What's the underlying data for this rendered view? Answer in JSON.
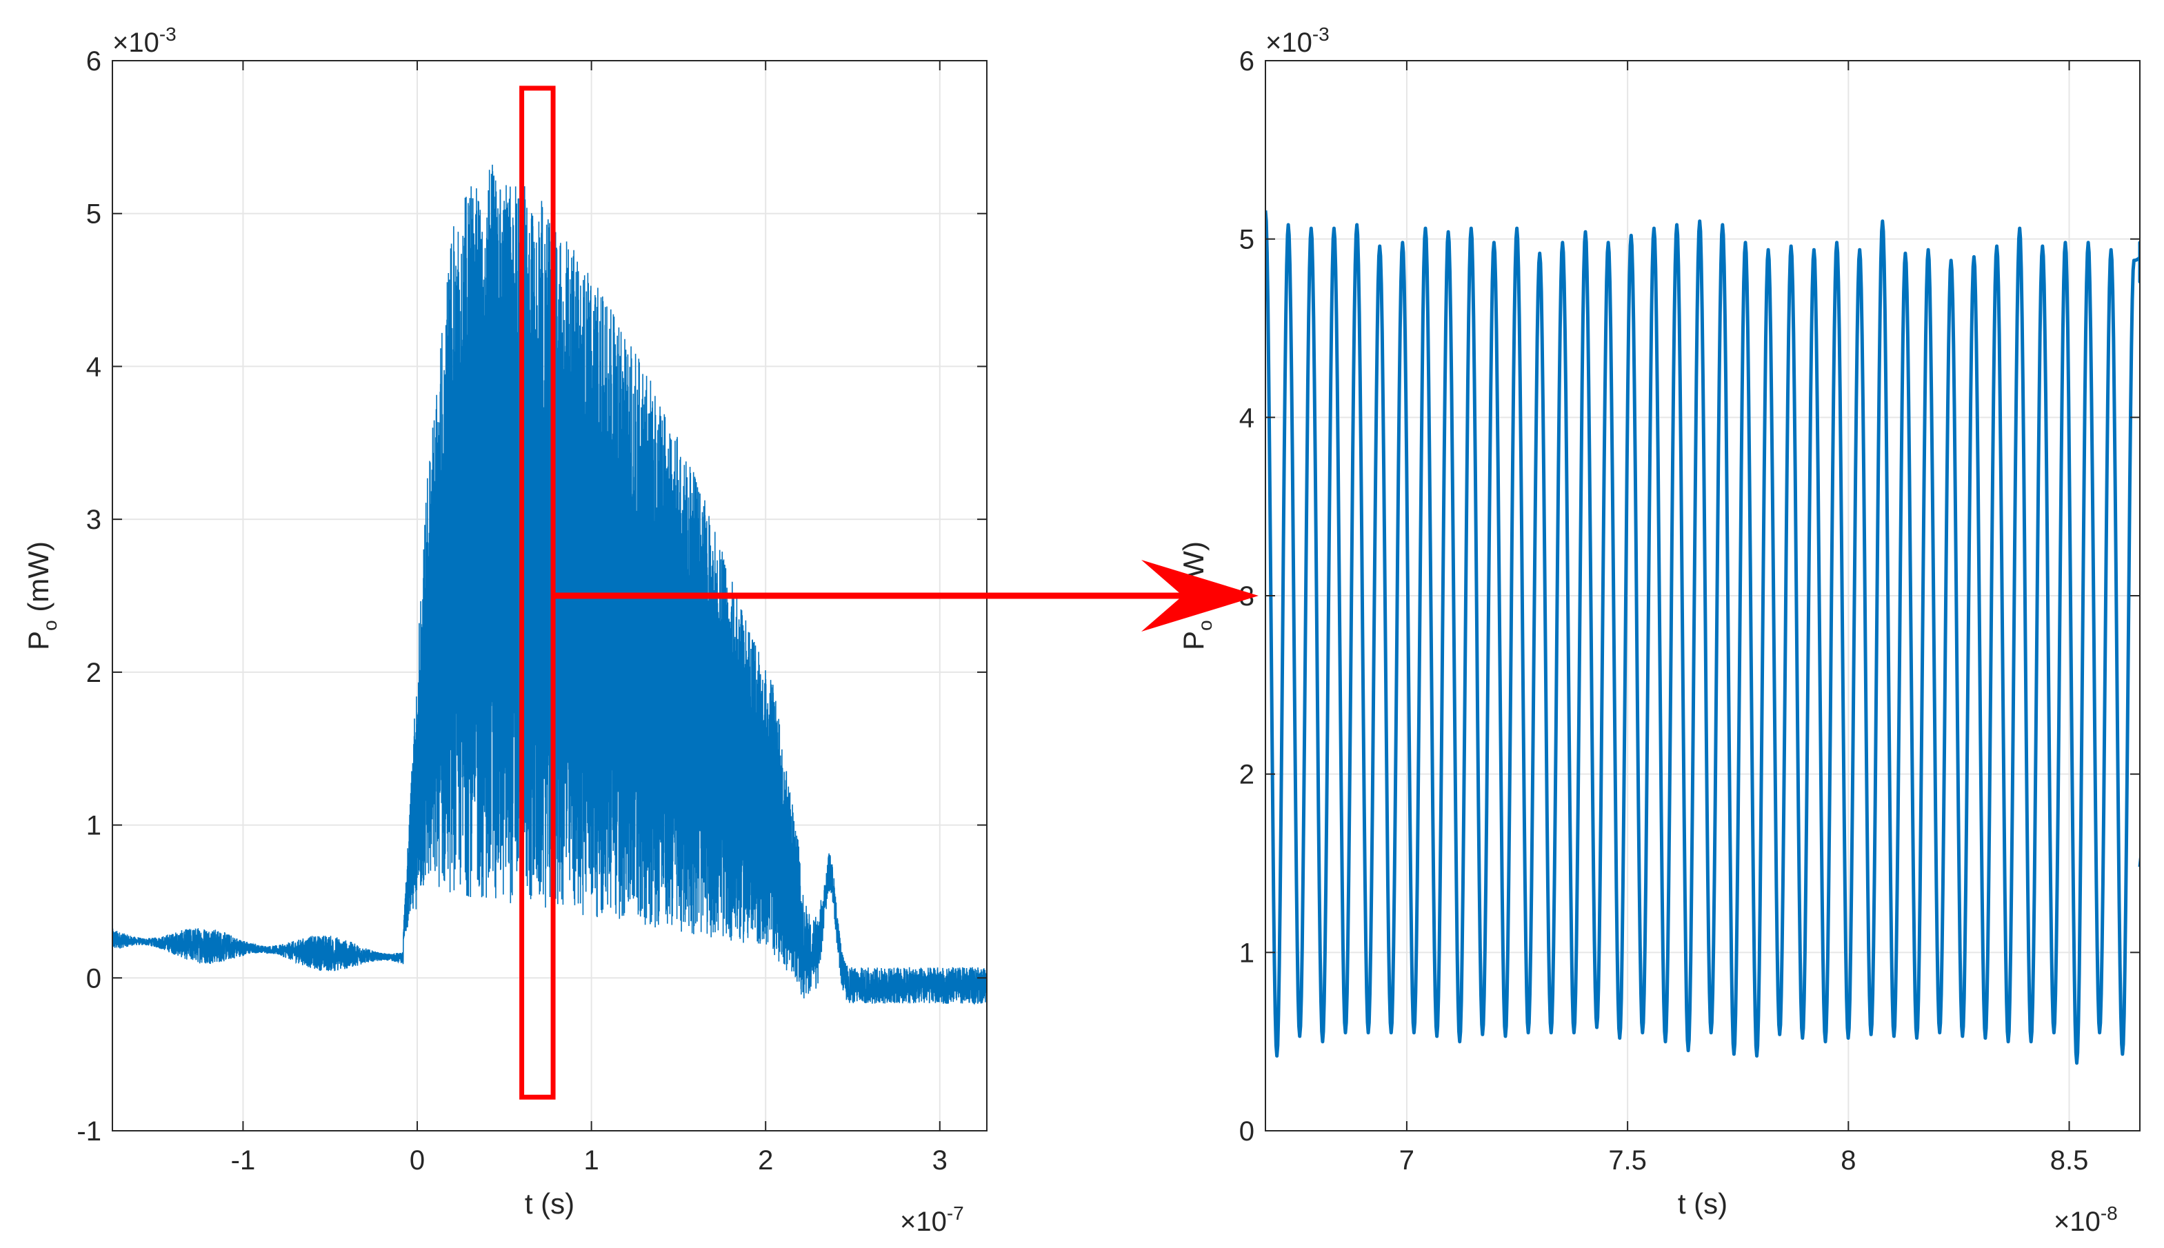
{
  "colors": {
    "series": "#0072bd",
    "grid": "#e6e6e6",
    "axis": "#262626",
    "annotation": "#ff0000"
  },
  "chart_data": [
    {
      "type": "line",
      "title": "",
      "xlabel": "t (s)",
      "ylabel_main": "P",
      "ylabel_sub": "o",
      "ylabel_unit": " (mW)",
      "xlim": [
        -1.75,
        3.27
      ],
      "ylim": [
        -1,
        6
      ],
      "xticks": [
        -1,
        0,
        1,
        2,
        3
      ],
      "yticks": [
        -1,
        0,
        1,
        2,
        3,
        4,
        5,
        6
      ],
      "xtick_labels": [
        "-1",
        "0",
        "1",
        "2",
        "3"
      ],
      "ytick_labels": [
        "-1",
        "0",
        "1",
        "2",
        "3",
        "4",
        "5",
        "6"
      ],
      "x_exponent_base": "×10",
      "x_exponent": "-7",
      "y_exponent_base": "×10",
      "y_exponent": "-3",
      "grid": true,
      "legend": "none",
      "series": [
        {
          "baseline_level": 0.25,
          "baseline_noise": 0.12,
          "rise_start": -0.08,
          "rise_peak": 0.35,
          "decay_end": 2.2,
          "bump_center": 2.37,
          "bump_height": 0.72,
          "envelope_upper": [
            [
              -0.08,
              0.3
            ],
            [
              0.05,
              3.2
            ],
            [
              0.2,
              4.9
            ],
            [
              0.35,
              5.35
            ],
            [
              0.5,
              5.3
            ],
            [
              0.75,
              5.05
            ],
            [
              1.0,
              4.6
            ],
            [
              1.3,
              4.0
            ],
            [
              1.6,
              3.3
            ],
            [
              1.9,
              2.3
            ],
            [
              2.05,
              1.9
            ],
            [
              2.2,
              0.8
            ]
          ],
          "envelope_lower": [
            [
              -0.08,
              0.25
            ],
            [
              0.05,
              0.6
            ],
            [
              0.2,
              0.55
            ],
            [
              0.4,
              0.5
            ],
            [
              0.75,
              0.45
            ],
            [
              1.0,
              0.4
            ],
            [
              1.5,
              0.3
            ],
            [
              2.0,
              0.2
            ],
            [
              2.2,
              -0.05
            ]
          ],
          "tail_level": -0.05,
          "tail_noise": 0.12
        }
      ],
      "annotation": {
        "zoom_box_x": [
          0.6,
          0.78
        ],
        "zoom_box_y": [
          -0.78,
          5.82
        ],
        "arrow_from_x": 0.78,
        "arrow_y": 2.5
      }
    },
    {
      "type": "line",
      "title": "",
      "xlabel": "t (s)",
      "ylabel_main": "P",
      "ylabel_sub": "o",
      "ylabel_unit": " (mW)",
      "xlim": [
        6.68,
        8.66
      ],
      "ylim": [
        0,
        6
      ],
      "xticks": [
        7,
        7.5,
        8,
        8.5
      ],
      "yticks": [
        0,
        1,
        2,
        3,
        4,
        5,
        6
      ],
      "xtick_labels": [
        "7",
        "7.5",
        "8",
        "8.5"
      ],
      "ytick_labels": [
        "0",
        "1",
        "2",
        "3",
        "4",
        "5",
        "6"
      ],
      "x_exponent_base": "×10",
      "x_exponent": "-8",
      "y_exponent_base": "×10",
      "y_exponent": "-3",
      "grid": true,
      "legend": "none",
      "series": [
        {
          "oscillation_start": 6.68,
          "period": 0.05175,
          "peaks": [
            5.16,
            5.08,
            5.06,
            5.06,
            5.08,
            4.96,
            4.98,
            5.06,
            5.04,
            5.06,
            4.98,
            5.06,
            4.92,
            4.98,
            5.04,
            4.98,
            5.02,
            5.06,
            5.08,
            5.1,
            5.08,
            4.98,
            4.94,
            4.96,
            4.94,
            4.98,
            4.94,
            5.1,
            4.92,
            4.94,
            4.88,
            4.9,
            4.96,
            5.06,
            4.96,
            4.98,
            4.98,
            4.94,
            4.88,
            4.98,
            4.76,
            4.82
          ],
          "troughs": [
            0.42,
            0.53,
            0.5,
            0.55,
            0.55,
            0.55,
            0.55,
            0.53,
            0.5,
            0.54,
            0.53,
            0.55,
            0.55,
            0.55,
            0.58,
            0.52,
            0.55,
            0.5,
            0.45,
            0.55,
            0.43,
            0.42,
            0.54,
            0.52,
            0.5,
            0.52,
            0.54,
            0.53,
            0.52,
            0.55,
            0.53,
            0.52,
            0.5,
            0.5,
            0.55,
            0.38,
            0.55,
            0.43,
            0.55,
            0.45,
            0.5,
            0.55
          ],
          "end_value": 1.48
        }
      ]
    }
  ]
}
